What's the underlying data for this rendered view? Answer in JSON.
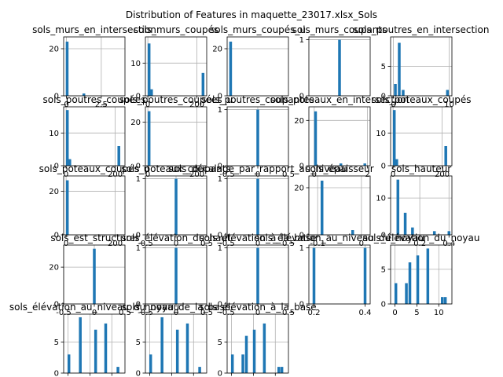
{
  "figure": {
    "title": "Distribution of Features in maquette_23017.xlsx_Sols",
    "bar_color": "#1f77b4",
    "grid": true
  },
  "chart_data": [
    {
      "type": "bar",
      "title": "sols_murs_en_intersection",
      "x": [
        0.05,
        0.45,
        1.25,
        2.05,
        2.85,
        3.65
      ],
      "values": [
        23,
        0,
        1,
        0,
        0,
        0
      ],
      "xlim": [
        -0.2,
        4.2
      ],
      "ylim": [
        0,
        25
      ],
      "xticks": [
        0,
        2.5
      ],
      "yticks": [
        0,
        20
      ]
    },
    {
      "type": "bar",
      "title": "sols_murs_coupés",
      "x": [
        5,
        15,
        120,
        215,
        225
      ],
      "values": [
        16,
        2,
        0,
        0,
        7
      ],
      "xlim": [
        -10,
        240
      ],
      "ylim": [
        0,
        18
      ],
      "xticks": [
        0,
        200
      ],
      "yticks": [
        0,
        10
      ]
    },
    {
      "type": "bar",
      "title": "sols_murs_coupés_u",
      "x": [
        0.05,
        1.25
      ],
      "values": [
        23,
        0
      ],
      "xlim": [
        -0.2,
        4.2
      ],
      "ylim": [
        0,
        25
      ],
      "xticks": [],
      "yticks": [
        0,
        20
      ]
    },
    {
      "type": "bar",
      "title": "sols_murs_coupants",
      "x": [
        0.0
      ],
      "values": [
        1
      ],
      "xlim": [
        -0.5,
        0.5
      ],
      "ylim": [
        0,
        1.05
      ],
      "xticks": [],
      "yticks": [
        0,
        1
      ]
    },
    {
      "type": "bar",
      "title": "sols_poutres_en_intersection",
      "x": [
        0.35,
        1.05,
        1.75,
        2.45,
        9.7
      ],
      "values": [
        2,
        9,
        1,
        0,
        1
      ],
      "xlim": [
        -0.5,
        10.5
      ],
      "ylim": [
        0,
        10
      ],
      "xticks": [
        0,
        10
      ],
      "yticks": [
        0,
        5
      ]
    },
    {
      "type": "bar",
      "title": "sols_poutres_coupées",
      "x": [
        5,
        15,
        215
      ],
      "values": [
        17,
        2,
        6
      ],
      "xlim": [
        -10,
        240
      ],
      "ylim": [
        0,
        18
      ],
      "xticks": [
        0,
        200
      ],
      "yticks": [
        0,
        10
      ]
    },
    {
      "type": "bar",
      "title": "sols_poutres_coupées_u",
      "x": [
        5,
        220
      ],
      "values": [
        25,
        0
      ],
      "xlim": [
        -10,
        240
      ],
      "ylim": [
        0,
        27
      ],
      "xticks": [
        0,
        200
      ],
      "yticks": [
        0,
        20
      ]
    },
    {
      "type": "bar",
      "title": "sols_poutres_coupantes",
      "x": [
        0.0
      ],
      "values": [
        1
      ],
      "xlim": [
        -0.5,
        0.5
      ],
      "ylim": [
        0,
        1.05
      ],
      "xticks": [
        -0.5,
        0.0,
        0.5
      ],
      "yticks": [
        0,
        1
      ]
    },
    {
      "type": "bar",
      "title": "sols_poteaux_en_intersection",
      "x": [
        0.05,
        1.0,
        1.9
      ],
      "values": [
        24,
        1,
        1
      ],
      "xlim": [
        -0.2,
        2.1
      ],
      "ylim": [
        0,
        26
      ],
      "xticks": [
        0,
        2
      ],
      "yticks": [
        0,
        20
      ]
    },
    {
      "type": "bar",
      "title": "sols_poteaux_coupés",
      "x": [
        5,
        15,
        215
      ],
      "values": [
        17,
        2,
        6
      ],
      "xlim": [
        -10,
        240
      ],
      "ylim": [
        0,
        18
      ],
      "xticks": [
        0,
        200
      ],
      "yticks": [
        0,
        10
      ]
    },
    {
      "type": "bar",
      "title": "sols_poteaux_coupés_u",
      "x": [
        5,
        220
      ],
      "values": [
        25,
        0
      ],
      "xlim": [
        -10,
        240
      ],
      "ylim": [
        0,
        27
      ],
      "xticks": [
        0,
        200
      ],
      "yticks": [
        0,
        20
      ]
    },
    {
      "type": "bar",
      "title": "sols_poteaux_coupants",
      "x": [
        0.0
      ],
      "values": [
        1
      ],
      "xlim": [
        -0.5,
        0.5
      ],
      "ylim": [
        0,
        1.05
      ],
      "xticks": [
        -0.5,
        0.0,
        0.5
      ],
      "yticks": [
        0,
        1
      ]
    },
    {
      "type": "bar",
      "title": "sols_décalage_par_rapport_au_niveau",
      "x": [
        0.0
      ],
      "values": [
        1
      ],
      "xlim": [
        -0.5,
        0.5
      ],
      "ylim": [
        0,
        1.05
      ],
      "xticks": [
        -0.5,
        0.0,
        0.5
      ],
      "yticks": [
        0,
        1
      ]
    },
    {
      "type": "bar",
      "title": "sols_épaisseur",
      "x": [
        -0.09,
        -0.02
      ],
      "values": [
        23,
        2
      ],
      "xlim": [
        -0.12,
        0.02
      ],
      "ylim": [
        0,
        25
      ],
      "xticks": [
        -0.1,
        0.0
      ],
      "yticks": [
        0,
        20
      ]
    },
    {
      "type": "bar",
      "title": "sols_hauteur",
      "x": [
        0.05,
        0.1,
        0.15,
        0.3,
        0.4
      ],
      "values": [
        15,
        6,
        2,
        1,
        1
      ],
      "xlim": [
        0.0,
        0.42
      ],
      "ylim": [
        0,
        16
      ],
      "xticks": [
        0.2,
        0.4
      ],
      "yticks": [
        0,
        10
      ]
    },
    {
      "type": "bar",
      "title": "sols_est_structurel",
      "x": [
        0.0
      ],
      "values": [
        30
      ],
      "xlim": [
        -0.5,
        0.5
      ],
      "ylim": [
        0,
        32
      ],
      "xticks": [
        -0.5,
        0.0,
        0.5
      ],
      "yticks": [
        0,
        20
      ]
    },
    {
      "type": "bar",
      "title": "sols_élévation_du_haut",
      "x": [
        0.0
      ],
      "values": [
        1
      ],
      "xlim": [
        -0.5,
        0.5
      ],
      "ylim": [
        0,
        1.05
      ],
      "xticks": [
        -0.5,
        0.0,
        0.5
      ],
      "yticks": [
        0,
        1
      ]
    },
    {
      "type": "bar",
      "title": "sols_élévation_à_la_base",
      "x": [
        0.0
      ],
      "values": [
        1
      ],
      "xlim": [
        -0.5,
        0.5
      ],
      "ylim": [
        0,
        1.05
      ],
      "xticks": [
        -0.5,
        0.0,
        0.5
      ],
      "yticks": [
        0,
        1
      ]
    },
    {
      "type": "bar",
      "title": "sols_élévation_au_niveau_du_noyau",
      "x": [
        0.2,
        0.4
      ],
      "values": [
        1,
        1
      ],
      "xlim": [
        0.18,
        0.42
      ],
      "ylim": [
        0,
        1.05
      ],
      "xticks": [
        0.2,
        0.4
      ],
      "yticks": [
        0,
        1
      ]
    },
    {
      "type": "bar",
      "title": "sols_élévation_du_noyau",
      "x": [
        0.2,
        2.6,
        3.4,
        5.2,
        7.5,
        10.8,
        11.5
      ],
      "values": [
        3,
        3,
        6,
        7,
        8,
        1,
        1
      ],
      "xlim": [
        -1,
        13
      ],
      "ylim": [
        0,
        8.5
      ],
      "xticks": [
        0,
        5,
        10
      ],
      "yticks": [
        0,
        5
      ]
    },
    {
      "type": "bar",
      "title": "sols_élévation_au_niveau_du_noyau",
      "x": [
        0.2,
        2.8,
        6.3,
        8.6,
        11.4
      ],
      "values": [
        3,
        9,
        7,
        8,
        1
      ],
      "xlim": [
        -1,
        13
      ],
      "ylim": [
        0,
        9.5
      ],
      "xticks": [
        0,
        5,
        10
      ],
      "yticks": [
        0,
        5
      ]
    },
    {
      "type": "bar",
      "title": "sols_noyau_de_la_base",
      "x": [
        0.2,
        2.8,
        6.3,
        8.6,
        11.4
      ],
      "values": [
        3,
        9,
        7,
        8,
        1
      ],
      "xlim": [
        -1,
        13
      ],
      "ylim": [
        0,
        9.5
      ],
      "xticks": [
        0,
        5,
        10
      ],
      "yticks": [
        0,
        5
      ]
    },
    {
      "type": "bar",
      "title": "sols_élévation_à_la_base",
      "x": [
        0.2,
        2.6,
        3.4,
        5.2,
        7.5,
        10.8,
        11.5
      ],
      "values": [
        3,
        3,
        6,
        7,
        8,
        1,
        1
      ],
      "xlim": [
        -1,
        13
      ],
      "ylim": [
        0,
        9.5
      ],
      "xticks": [
        0,
        5,
        10
      ],
      "yticks": [
        0,
        5
      ]
    }
  ]
}
